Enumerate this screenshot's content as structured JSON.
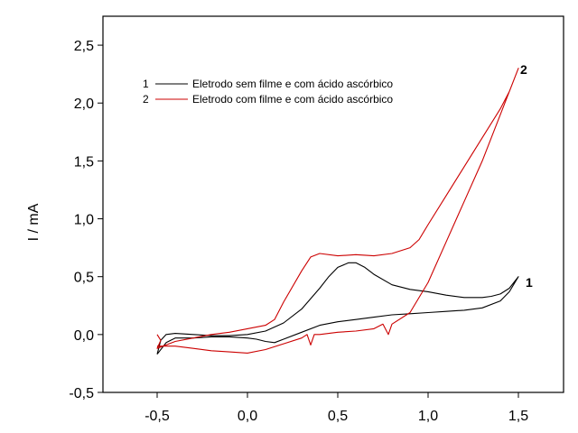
{
  "chart_data": {
    "type": "line",
    "title": "",
    "xlabel": "",
    "ylabel": "I / mA",
    "xlim": [
      -0.8,
      1.75
    ],
    "ylim": [
      -0.5,
      2.75
    ],
    "xticks": [
      -0.5,
      0.0,
      0.5,
      1.0,
      1.5
    ],
    "xtick_labels": [
      "-0,5",
      "0,0",
      "0,5",
      "1,0",
      "1,5"
    ],
    "yticks": [
      -0.5,
      0.0,
      0.5,
      1.0,
      1.5,
      2.0,
      2.5
    ],
    "ytick_labels": [
      "-0,5",
      "0,0",
      "0,5",
      "1,0",
      "1,5",
      "2,0",
      "2,5"
    ],
    "grid": false,
    "legend": "top-left",
    "series": [
      {
        "name": "Eletrodo sem filme e com ácido ascórbico",
        "legend_number": "1",
        "tag": "1",
        "color": "#000000",
        "points": [
          [
            -0.5,
            -0.17
          ],
          [
            -0.45,
            -0.07
          ],
          [
            -0.4,
            -0.03
          ],
          [
            -0.3,
            -0.03
          ],
          [
            -0.2,
            -0.02
          ],
          [
            -0.1,
            -0.02
          ],
          [
            0.0,
            -0.03
          ],
          [
            0.05,
            -0.04
          ],
          [
            0.1,
            -0.06
          ],
          [
            0.15,
            -0.07
          ],
          [
            0.2,
            -0.04
          ],
          [
            0.3,
            0.02
          ],
          [
            0.4,
            0.08
          ],
          [
            0.5,
            0.11
          ],
          [
            0.6,
            0.13
          ],
          [
            0.7,
            0.15
          ],
          [
            0.8,
            0.17
          ],
          [
            0.9,
            0.18
          ],
          [
            1.0,
            0.19
          ],
          [
            1.1,
            0.2
          ],
          [
            1.2,
            0.21
          ],
          [
            1.3,
            0.23
          ],
          [
            1.4,
            0.29
          ],
          [
            1.45,
            0.37
          ],
          [
            1.5,
            0.5
          ],
          [
            1.45,
            0.4
          ],
          [
            1.4,
            0.35
          ],
          [
            1.35,
            0.33
          ],
          [
            1.3,
            0.32
          ],
          [
            1.2,
            0.32
          ],
          [
            1.1,
            0.34
          ],
          [
            1.0,
            0.37
          ],
          [
            0.9,
            0.39
          ],
          [
            0.8,
            0.43
          ],
          [
            0.7,
            0.52
          ],
          [
            0.65,
            0.58
          ],
          [
            0.6,
            0.62
          ],
          [
            0.56,
            0.62
          ],
          [
            0.5,
            0.58
          ],
          [
            0.45,
            0.5
          ],
          [
            0.4,
            0.4
          ],
          [
            0.3,
            0.22
          ],
          [
            0.2,
            0.1
          ],
          [
            0.1,
            0.03
          ],
          [
            0.0,
            0.0
          ],
          [
            -0.1,
            -0.01
          ],
          [
            -0.2,
            -0.01
          ],
          [
            -0.3,
            0.0
          ],
          [
            -0.4,
            0.01
          ],
          [
            -0.45,
            0.0
          ],
          [
            -0.48,
            -0.05
          ],
          [
            -0.5,
            -0.17
          ]
        ]
      },
      {
        "name": "Eletrodo com filme e com ácido ascórbico",
        "legend_number": "2",
        "tag": "2",
        "color": "#cc0000",
        "points": [
          [
            -0.5,
            -0.1
          ],
          [
            -0.4,
            -0.1
          ],
          [
            -0.3,
            -0.12
          ],
          [
            -0.2,
            -0.14
          ],
          [
            -0.1,
            -0.15
          ],
          [
            0.0,
            -0.16
          ],
          [
            0.1,
            -0.13
          ],
          [
            0.2,
            -0.08
          ],
          [
            0.3,
            -0.03
          ],
          [
            0.33,
            0.0
          ],
          [
            0.35,
            -0.09
          ],
          [
            0.37,
            0.0
          ],
          [
            0.4,
            0.0
          ],
          [
            0.5,
            0.02
          ],
          [
            0.6,
            0.03
          ],
          [
            0.7,
            0.05
          ],
          [
            0.75,
            0.09
          ],
          [
            0.78,
            0.0
          ],
          [
            0.8,
            0.09
          ],
          [
            0.9,
            0.19
          ],
          [
            1.0,
            0.45
          ],
          [
            1.1,
            0.8
          ],
          [
            1.2,
            1.15
          ],
          [
            1.3,
            1.5
          ],
          [
            1.4,
            1.9
          ],
          [
            1.5,
            2.3
          ],
          [
            1.45,
            2.1
          ],
          [
            1.4,
            1.95
          ],
          [
            1.3,
            1.7
          ],
          [
            1.2,
            1.45
          ],
          [
            1.1,
            1.2
          ],
          [
            1.0,
            0.95
          ],
          [
            0.95,
            0.82
          ],
          [
            0.9,
            0.75
          ],
          [
            0.8,
            0.7
          ],
          [
            0.7,
            0.68
          ],
          [
            0.6,
            0.69
          ],
          [
            0.5,
            0.68
          ],
          [
            0.4,
            0.7
          ],
          [
            0.35,
            0.67
          ],
          [
            0.3,
            0.55
          ],
          [
            0.2,
            0.28
          ],
          [
            0.15,
            0.13
          ],
          [
            0.1,
            0.08
          ],
          [
            0.0,
            0.05
          ],
          [
            -0.1,
            0.02
          ],
          [
            -0.2,
            0.0
          ],
          [
            -0.3,
            -0.03
          ],
          [
            -0.4,
            -0.06
          ],
          [
            -0.5,
            -0.12
          ],
          [
            -0.48,
            -0.05
          ],
          [
            -0.5,
            0.0
          ]
        ]
      }
    ]
  }
}
